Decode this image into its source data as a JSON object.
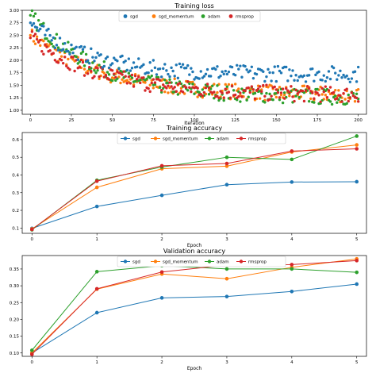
{
  "colors": {
    "sgd": "#1f77b4",
    "sgd_momentum": "#ff7f0e",
    "adam": "#2ca02c",
    "rmsprop": "#d62728"
  },
  "chart_data": [
    {
      "type": "scatter",
      "title": "Training loss",
      "xlabel": "Iteration",
      "ylabel": "",
      "xlim": [
        -5,
        205
      ],
      "ylim": [
        0.92,
        3.0
      ],
      "xticks": [
        "0",
        "25",
        "50",
        "75",
        "100",
        "125",
        "150",
        "175",
        "200"
      ],
      "xtick_values": [
        0,
        25,
        50,
        75,
        100,
        125,
        150,
        175,
        200
      ],
      "yticks": [
        "1.00",
        "1.25",
        "1.50",
        "1.75",
        "2.00",
        "2.25",
        "2.50",
        "2.75",
        "3.00"
      ],
      "ytick_values": [
        1.0,
        1.25,
        1.5,
        1.75,
        2.0,
        2.25,
        2.5,
        2.75,
        3.0
      ],
      "legend": "top-center",
      "legend_labels": [
        "sgd",
        "sgd_momentum",
        "adam",
        "rmsprop"
      ],
      "series_model": {
        "sgd": {
          "start": 2.75,
          "end": 1.72,
          "decay": 35
        },
        "sgd_momentum": {
          "start": 2.5,
          "end": 1.3,
          "decay": 45
        },
        "adam": {
          "start": 2.9,
          "end": 1.25,
          "decay": 42
        },
        "rmsprop": {
          "start": 2.45,
          "end": 1.3,
          "decay": 45
        }
      }
    },
    {
      "type": "line",
      "title": "Training accuracy",
      "xlabel": "Epoch",
      "ylabel": "",
      "x": [
        0,
        1,
        2,
        3,
        4,
        5
      ],
      "xlim": [
        -0.15,
        5.15
      ],
      "ylim": [
        0.07,
        0.64
      ],
      "xticks": [
        "0",
        "1",
        "2",
        "3",
        "4",
        "5"
      ],
      "yticks": [
        "0.1",
        "0.2",
        "0.3",
        "0.4",
        "0.5",
        "0.6"
      ],
      "ytick_values": [
        0.1,
        0.2,
        0.3,
        0.4,
        0.5,
        0.6
      ],
      "legend": "top-center",
      "series": [
        {
          "name": "sgd",
          "values": [
            0.098,
            0.222,
            0.285,
            0.345,
            0.36,
            0.362
          ]
        },
        {
          "name": "sgd_momentum",
          "values": [
            0.095,
            0.33,
            0.435,
            0.45,
            0.53,
            0.57
          ]
        },
        {
          "name": "adam",
          "values": [
            0.09,
            0.37,
            0.445,
            0.5,
            0.488,
            0.62
          ]
        },
        {
          "name": "rmsprop",
          "values": [
            0.092,
            0.365,
            0.452,
            0.465,
            0.535,
            0.548
          ]
        }
      ]
    },
    {
      "type": "line",
      "title": "Validation accuracy",
      "xlabel": "Epoch",
      "ylabel": "",
      "x": [
        0,
        1,
        2,
        3,
        4,
        5
      ],
      "xlim": [
        -0.15,
        5.15
      ],
      "ylim": [
        0.09,
        0.39
      ],
      "xticks": [
        "0",
        "1",
        "2",
        "3",
        "4",
        "5"
      ],
      "yticks": [
        "0.10",
        "0.15",
        "0.20",
        "0.25",
        "0.30",
        "0.35"
      ],
      "ytick_values": [
        0.1,
        0.15,
        0.2,
        0.25,
        0.3,
        0.35
      ],
      "legend": "top-center",
      "series": [
        {
          "name": "sgd",
          "values": [
            0.1,
            0.22,
            0.264,
            0.268,
            0.283,
            0.305
          ]
        },
        {
          "name": "sgd_momentum",
          "values": [
            0.1,
            0.29,
            0.335,
            0.321,
            0.355,
            0.38
          ]
        },
        {
          "name": "adam",
          "values": [
            0.108,
            0.342,
            0.36,
            0.35,
            0.35,
            0.34
          ]
        },
        {
          "name": "rmsprop",
          "values": [
            0.096,
            0.291,
            0.341,
            0.362,
            0.363,
            0.375
          ]
        }
      ]
    }
  ]
}
